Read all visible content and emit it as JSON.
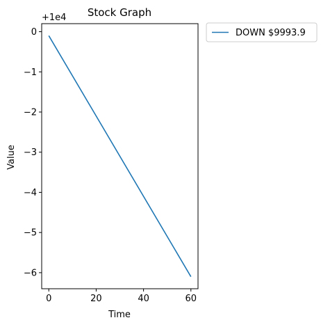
{
  "chart_data": {
    "type": "line",
    "title": "Stock Graph",
    "xlabel": "Time",
    "ylabel": "Value",
    "offset_text": "+1e4",
    "xlim": [
      -3,
      63
    ],
    "ylim": [
      -6.4,
      0.2
    ],
    "x_ticks": [
      0,
      20,
      40,
      60
    ],
    "y_ticks": [
      0,
      -1,
      -2,
      -3,
      -4,
      -5,
      -6
    ],
    "x_tick_labels": [
      "0",
      "20",
      "40",
      "60"
    ],
    "y_tick_labels": [
      "0",
      "−1",
      "−2",
      "−3",
      "−4",
      "−5",
      "−6"
    ],
    "legend_placement": "outside-top-right",
    "grid": false,
    "series": [
      {
        "name": "DOWN $9993.9",
        "color": "#1f77b4",
        "x": [
          0,
          60
        ],
        "y": [
          -0.1,
          -6.1
        ]
      }
    ]
  }
}
